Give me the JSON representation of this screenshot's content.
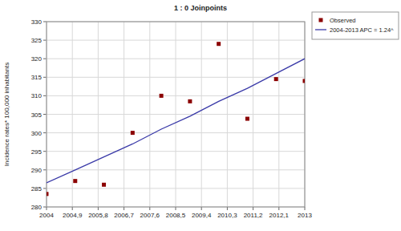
{
  "chart_data": {
    "type": "scatter",
    "title": "1 : 0 Joinpoints",
    "y_label": "Incidence rates* 100,000 inhabitants",
    "x": [
      2004,
      2005,
      2006,
      2007,
      2008,
      2009,
      2010,
      2011,
      2012,
      2013
    ],
    "series": [
      {
        "name": "Observed",
        "type": "scatter",
        "color": "#8b0000",
        "marker": "square",
        "values": [
          283.5,
          287,
          286,
          300,
          310,
          308.5,
          324,
          303.8,
          314.5,
          314
        ]
      },
      {
        "name": "2004-2013 APC = 1.24^",
        "type": "line",
        "color": "#3a3aa8",
        "line_style": "solid",
        "values": [
          286.5,
          290,
          293.5,
          297,
          301,
          304.5,
          308.5,
          312,
          316,
          320
        ]
      }
    ],
    "xlim": [
      2004,
      2013
    ],
    "xticks": [
      2004,
      {
        "value": 2004.9,
        "label": "2004,9"
      },
      {
        "value": 2005.8,
        "label": "2005,8"
      },
      {
        "value": 2006.7,
        "label": "2006,7"
      },
      {
        "value": 2007.6,
        "label": "2007,6"
      },
      {
        "value": 2008.5,
        "label": "2008,5"
      },
      {
        "value": 2009.4,
        "label": "2009,4"
      },
      {
        "value": 2010.3,
        "label": "2010,3"
      },
      {
        "value": 2011.2,
        "label": "2011,2"
      },
      {
        "value": 2012.1,
        "label": "2012,1"
      },
      2013
    ],
    "ylim": [
      280,
      330
    ],
    "yticks": [
      280,
      285,
      290,
      295,
      300,
      305,
      310,
      315,
      320,
      325,
      330
    ],
    "grid": true,
    "legend": "right"
  }
}
